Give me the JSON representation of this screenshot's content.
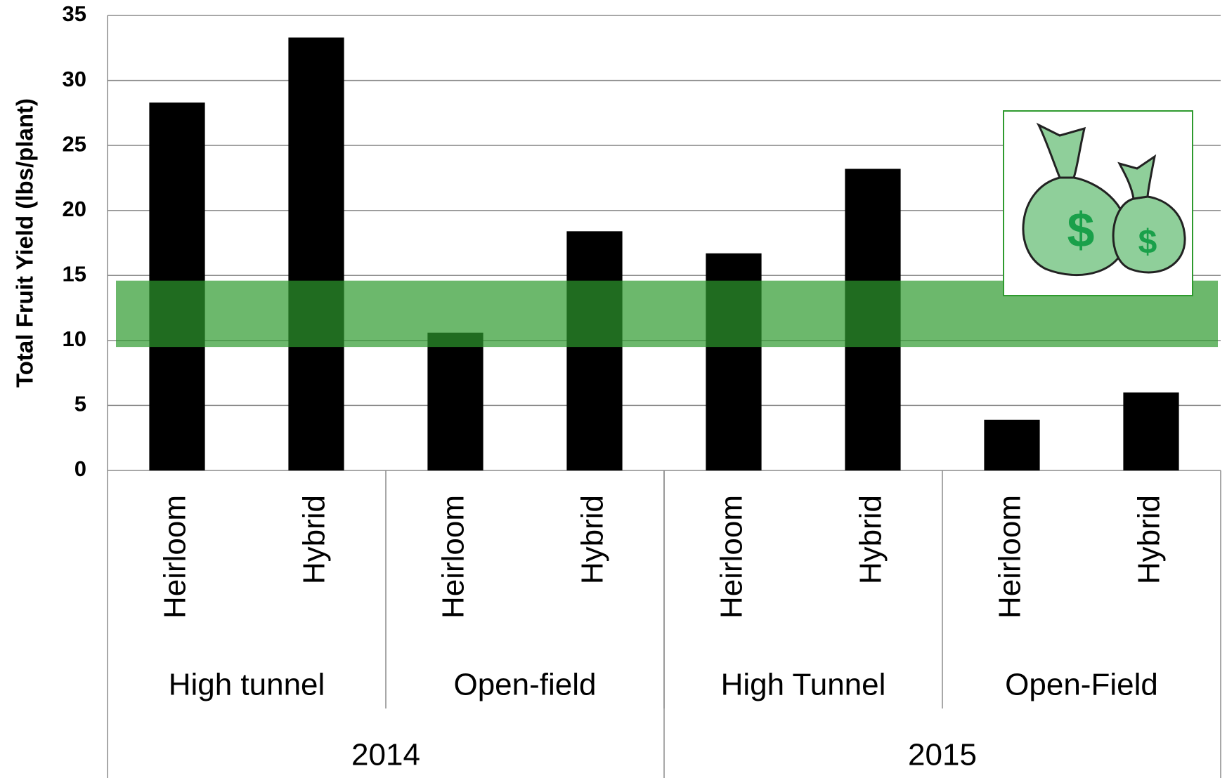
{
  "chart_data": {
    "type": "bar",
    "y_label": "Total Fruit Yield (lbs/plant)",
    "categories": [
      "Heirloom",
      "Hybrid",
      "Heirloom",
      "Hybrid",
      "Heirloom",
      "Hybrid",
      "Heirloom",
      "Hybrid"
    ],
    "groups": [
      "High tunnel",
      "Open-field",
      "High Tunnel",
      "Open-Field"
    ],
    "years": [
      "2014",
      "2015"
    ],
    "values": [
      28.3,
      33.3,
      10.6,
      18.4,
      16.7,
      23.2,
      3.9,
      6.0
    ],
    "color": "#000000",
    "band": {
      "from": 9.5,
      "to": 14.6,
      "color": "#2e9a2e"
    },
    "ylim": [
      0,
      35
    ],
    "yticks": [
      0,
      5,
      10,
      15,
      20,
      25,
      30,
      35
    ],
    "grid": true
  }
}
